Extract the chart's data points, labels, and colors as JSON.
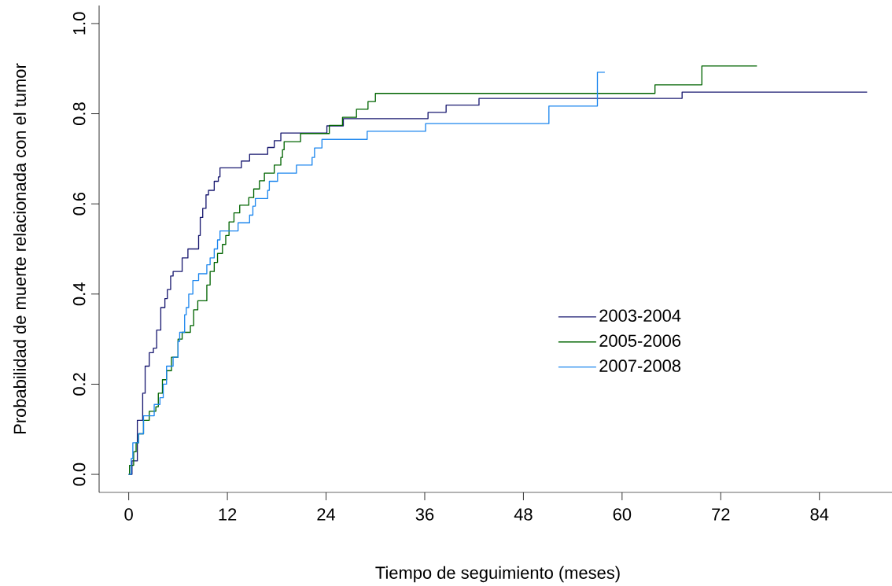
{
  "chart_data": {
    "type": "step",
    "xlabel": "Tiempo de seguimiento (meses)",
    "ylabel": "Probabilidad de muerte relacionada con el tumor",
    "xlim": [
      -3.6,
      93.4
    ],
    "ylim": [
      -0.04,
      1.04
    ],
    "xticks": [
      0,
      12,
      24,
      36,
      48,
      60,
      72,
      84
    ],
    "yticks": [
      {
        "value": 0,
        "label": "0.0"
      },
      0.2,
      0.4,
      0.6,
      0.8,
      {
        "value": 1,
        "label": "1.0"
      }
    ],
    "legend": "right",
    "series": [
      {
        "name": "2003-2004",
        "color": "#191970",
        "x": [
          0,
          0.4,
          1.05,
          1.7,
          2.0,
          2.5,
          3.0,
          3.4,
          3.9,
          4.4,
          4.7,
          5.1,
          5.4,
          6.5,
          7.2,
          8.5,
          8.7,
          9.0,
          9.4,
          9.7,
          10.4,
          10.9,
          11.1,
          13.7,
          14.7,
          16.9,
          17.7,
          18.5,
          24.1,
          26.1,
          36.4,
          38.6,
          42.6,
          67.3,
          89.8
        ],
        "values": [
          0,
          0.03,
          0.12,
          0.18,
          0.24,
          0.27,
          0.28,
          0.32,
          0.37,
          0.39,
          0.41,
          0.44,
          0.45,
          0.48,
          0.5,
          0.53,
          0.57,
          0.59,
          0.62,
          0.63,
          0.65,
          0.66,
          0.68,
          0.695,
          0.71,
          0.725,
          0.74,
          0.757,
          0.773,
          0.789,
          0.803,
          0.819,
          0.834,
          0.848,
          0.848
        ]
      },
      {
        "name": "2005-2006",
        "color": "#006400",
        "x": [
          0,
          0.1,
          0.6,
          0.9,
          1.2,
          1.8,
          2.5,
          3.3,
          3.6,
          4.1,
          4.6,
          5.2,
          6.0,
          6.5,
          7.5,
          7.9,
          8.4,
          9.5,
          9.9,
          10.4,
          10.8,
          11.4,
          11.8,
          12.2,
          12.8,
          13.5,
          14.6,
          15.2,
          15.9,
          16.5,
          17.7,
          18.5,
          18.7,
          18.9,
          20.9,
          24.4,
          26.0,
          27.7,
          29.1,
          30.0,
          64.0,
          69.7,
          76.4
        ],
        "values": [
          0,
          0.02,
          0.05,
          0.07,
          0.09,
          0.12,
          0.14,
          0.15,
          0.18,
          0.21,
          0.23,
          0.26,
          0.3,
          0.315,
          0.33,
          0.365,
          0.385,
          0.42,
          0.45,
          0.47,
          0.49,
          0.51,
          0.53,
          0.56,
          0.58,
          0.597,
          0.614,
          0.633,
          0.651,
          0.668,
          0.686,
          0.703,
          0.72,
          0.738,
          0.756,
          0.774,
          0.792,
          0.81,
          0.827,
          0.845,
          0.864,
          0.906,
          0.906
        ]
      },
      {
        "name": "2007-2008",
        "color": "#1c86ee",
        "x": [
          0,
          0.3,
          0.5,
          1.2,
          1.8,
          3.1,
          3.8,
          4.2,
          4.6,
          5.4,
          6.0,
          6.2,
          6.8,
          7.0,
          7.3,
          7.8,
          8.5,
          9.5,
          9.9,
          10.4,
          10.8,
          11.1,
          13.3,
          14.7,
          15.1,
          15.4,
          16.9,
          17.1,
          18.1,
          20.4,
          22.3,
          22.6,
          23.5,
          29.0,
          36.1,
          51.1,
          57.0,
          57.9
        ],
        "values": [
          0,
          0.035,
          0.07,
          0.09,
          0.13,
          0.155,
          0.17,
          0.2,
          0.24,
          0.26,
          0.295,
          0.315,
          0.354,
          0.37,
          0.4,
          0.43,
          0.445,
          0.465,
          0.48,
          0.5,
          0.52,
          0.54,
          0.558,
          0.575,
          0.595,
          0.612,
          0.63,
          0.65,
          0.668,
          0.686,
          0.703,
          0.724,
          0.743,
          0.761,
          0.778,
          0.817,
          0.892,
          0.892
        ]
      }
    ]
  }
}
